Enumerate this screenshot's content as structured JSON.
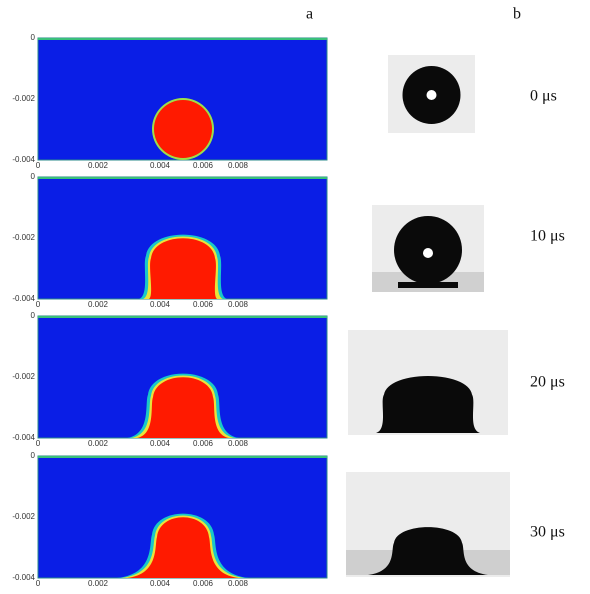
{
  "labels": {
    "a": "a",
    "b": "b"
  },
  "panels": [
    {
      "time": "0 μs",
      "yticks": [
        "0",
        "-0.002",
        "-0.004"
      ],
      "xticks": [
        "0",
        "0.002",
        "0.004",
        "0.006",
        "0.008"
      ]
    },
    {
      "time": "10 μs",
      "yticks": [
        "0",
        "-0.002",
        "-0.004"
      ],
      "xticks": [
        "0",
        "0.002",
        "0.004",
        "0.006",
        "0.008"
      ]
    },
    {
      "time": "20 μs",
      "yticks": [
        "0",
        "-0.002",
        "-0.004"
      ],
      "xticks": [
        "0",
        "0.002",
        "0.004",
        "0.006",
        "0.008"
      ]
    },
    {
      "time": "30 μs",
      "yticks": [
        "0",
        "-0.002",
        "-0.004"
      ],
      "xticks": [
        "0",
        "0.002",
        "0.004",
        "0.006",
        "0.008"
      ]
    }
  ]
}
